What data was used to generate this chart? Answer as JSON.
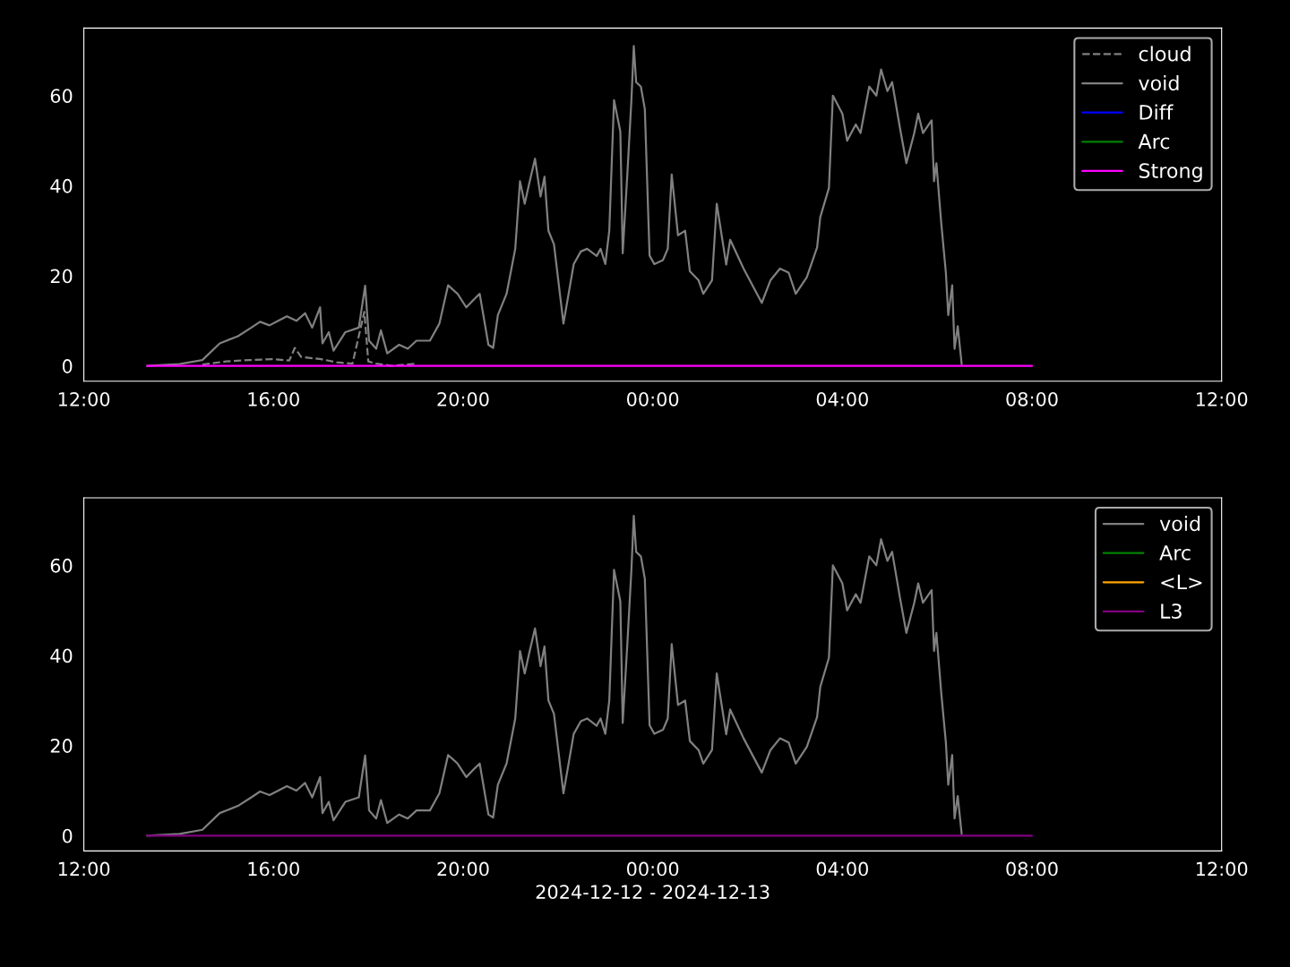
{
  "chart_data": [
    {
      "type": "line",
      "xlim": [
        "2024-12-12T12:00",
        "2024-12-13T12:00"
      ],
      "ylim": [
        -3.4,
        75
      ],
      "xticks": [
        {
          "value": "2024-12-12T12:00",
          "label": "12:00"
        },
        {
          "value": "2024-12-12T16:00",
          "label": "16:00"
        },
        {
          "value": "2024-12-12T20:00",
          "label": "20:00"
        },
        {
          "value": "2024-12-13T00:00",
          "label": "00:00"
        },
        {
          "value": "2024-12-13T04:00",
          "label": "04:00"
        },
        {
          "value": "2024-12-13T08:00",
          "label": "08:00"
        },
        {
          "value": "2024-12-13T12:00",
          "label": "12:00"
        }
      ],
      "yticks": [
        0,
        20,
        40,
        60
      ],
      "legend": "top right",
      "grid": false,
      "series": [
        {
          "name": "cloud",
          "color": "#808080",
          "line_style": "dashed",
          "x": [
            "2024-12-12T14:30",
            "2024-12-12T15:00",
            "2024-12-12T15:30",
            "2024-12-12T16:00",
            "2024-12-12T16:20",
            "2024-12-12T16:27",
            "2024-12-12T16:35",
            "2024-12-12T17:00",
            "2024-12-12T17:20",
            "2024-12-12T17:40",
            "2024-12-12T17:55",
            "2024-12-12T18:00",
            "2024-12-12T18:10",
            "2024-12-12T18:30",
            "2024-12-12T19:00"
          ],
          "values": [
            0.3,
            1,
            1.3,
            1.5,
            1.2,
            4,
            2,
            1.5,
            0.8,
            0.5,
            12,
            1,
            0.5,
            0,
            0.5
          ]
        },
        {
          "name": "void",
          "color": "#808080",
          "line_style": "solid",
          "x": [
            "2024-12-12T13:20",
            "2024-12-12T14:01",
            "2024-12-12T14:30",
            "2024-12-12T14:52",
            "2024-12-12T15:15",
            "2024-12-12T15:32",
            "2024-12-12T15:43",
            "2024-12-12T15:55",
            "2024-12-12T16:06",
            "2024-12-12T16:17",
            "2024-12-12T16:29",
            "2024-12-12T16:40",
            "2024-12-12T16:49",
            "2024-12-12T16:59",
            "2024-12-12T17:02",
            "2024-12-12T17:10",
            "2024-12-12T17:16",
            "2024-12-12T17:31",
            "2024-12-12T17:48",
            "2024-12-12T17:56",
            "2024-12-12T18:01",
            "2024-12-12T18:10",
            "2024-12-12T18:16",
            "2024-12-12T18:24",
            "2024-12-12T18:39",
            "2024-12-12T18:50",
            "2024-12-12T19:01",
            "2024-12-12T19:18",
            "2024-12-12T19:30",
            "2024-12-12T19:41",
            "2024-12-12T19:53",
            "2024-12-12T20:04",
            "2024-12-12T20:15",
            "2024-12-12T20:21",
            "2024-12-12T20:32",
            "2024-12-12T20:38",
            "2024-12-12T20:44",
            "2024-12-12T20:55",
            "2024-12-12T21:06",
            "2024-12-12T21:12",
            "2024-12-12T21:18",
            "2024-12-12T21:23",
            "2024-12-12T21:31",
            "2024-12-12T21:38",
            "2024-12-12T21:43",
            "2024-12-12T21:48",
            "2024-12-12T21:55",
            "2024-12-12T22:07",
            "2024-12-12T22:20",
            "2024-12-12T22:29",
            "2024-12-12T22:37",
            "2024-12-12T22:49",
            "2024-12-12T22:54",
            "2024-12-12T23:00",
            "2024-12-12T23:05",
            "2024-12-12T23:11",
            "2024-12-12T23:19",
            "2024-12-12T23:22",
            "2024-12-12T23:28",
            "2024-12-12T23:33",
            "2024-12-12T23:36",
            "2024-12-12T23:39",
            "2024-12-12T23:45",
            "2024-12-12T23:50",
            "2024-12-12T23:56",
            "2024-12-13T00:02",
            "2024-12-13T00:13",
            "2024-12-13T00:19",
            "2024-12-13T00:24",
            "2024-12-13T00:32",
            "2024-12-13T00:41",
            "2024-12-13T00:47",
            "2024-12-13T00:58",
            "2024-12-13T01:04",
            "2024-12-13T01:15",
            "2024-12-13T01:21",
            "2024-12-13T01:33",
            "2024-12-13T01:38",
            "2024-12-13T01:55",
            "2024-12-13T02:18",
            "2024-12-13T02:29",
            "2024-12-13T02:41",
            "2024-12-13T02:52",
            "2024-12-13T03:01",
            "2024-12-13T03:15",
            "2024-12-13T03:28",
            "2024-12-13T03:32",
            "2024-12-13T03:43",
            "2024-12-13T03:48",
            "2024-12-13T04:00",
            "2024-12-13T04:06",
            "2024-12-13T04:17",
            "2024-12-13T04:23",
            "2024-12-13T04:34",
            "2024-12-13T04:43",
            "2024-12-13T04:49",
            "2024-12-13T04:57",
            "2024-12-13T05:03",
            "2024-12-13T05:13",
            "2024-12-13T05:21",
            "2024-12-13T05:31",
            "2024-12-13T05:36",
            "2024-12-13T05:42",
            "2024-12-13T05:53",
            "2024-12-13T05:56",
            "2024-12-13T05:59",
            "2024-12-13T06:05",
            "2024-12-13T06:11",
            "2024-12-13T06:14",
            "2024-12-13T06:19",
            "2024-12-13T06:22",
            "2024-12-13T06:26",
            "2024-12-13T06:31"
          ],
          "values": [
            0,
            0.4,
            1.3,
            5,
            6.6,
            8.5,
            9.8,
            9,
            10,
            11,
            10,
            11.7,
            8.5,
            13,
            5,
            7.5,
            3.4,
            7.5,
            8.5,
            17.8,
            5.6,
            3.8,
            7.9,
            2.8,
            4.7,
            3.8,
            5.6,
            5.6,
            9.4,
            17.9,
            16,
            13,
            15,
            16,
            4.7,
            4,
            11.3,
            16,
            26,
            41,
            36,
            40,
            46,
            37.6,
            42,
            30,
            27,
            9.4,
            22.6,
            25.4,
            26,
            24.4,
            26,
            22.6,
            30,
            59,
            52,
            25,
            43,
            59,
            71,
            63,
            62,
            57,
            24.5,
            22.6,
            23.5,
            26,
            42.5,
            29,
            30,
            21,
            19,
            16,
            19,
            36,
            22.5,
            28,
            21.6,
            14,
            19,
            21.6,
            20.7,
            16,
            19.7,
            26.3,
            33,
            39.5,
            60,
            56,
            50,
            53.6,
            51.7,
            62,
            60,
            65.8,
            61,
            63,
            52.7,
            45,
            51.7,
            56,
            51.7,
            54.5,
            41,
            45,
            32,
            20.7,
            11.3,
            17.9,
            3.8,
            8.8,
            0.4
          ]
        },
        {
          "name": "Diff",
          "color": "#0000ff",
          "line_style": "solid"
        },
        {
          "name": "Arc",
          "color": "#008000",
          "line_style": "solid"
        },
        {
          "name": "Strong",
          "color": "#ff00ff",
          "line_style": "solid",
          "x": [
            "2024-12-12T13:20",
            "2024-12-13T08:00"
          ],
          "values": [
            0,
            0
          ]
        }
      ]
    },
    {
      "type": "line",
      "xlabel": "2024-12-12 - 2024-12-13",
      "xlim": [
        "2024-12-12T12:00",
        "2024-12-13T12:00"
      ],
      "ylim": [
        -3.4,
        75
      ],
      "xticks": [
        {
          "value": "2024-12-12T12:00",
          "label": "12:00"
        },
        {
          "value": "2024-12-12T16:00",
          "label": "16:00"
        },
        {
          "value": "2024-12-12T20:00",
          "label": "20:00"
        },
        {
          "value": "2024-12-13T00:00",
          "label": "00:00"
        },
        {
          "value": "2024-12-13T04:00",
          "label": "04:00"
        },
        {
          "value": "2024-12-13T08:00",
          "label": "08:00"
        },
        {
          "value": "2024-12-13T12:00",
          "label": "12:00"
        }
      ],
      "yticks": [
        0,
        20,
        40,
        60
      ],
      "legend": "top right",
      "grid": false,
      "series": [
        {
          "name": "void",
          "color": "#808080",
          "line_style": "solid",
          "x": [
            "2024-12-12T13:20",
            "2024-12-12T14:01",
            "2024-12-12T14:30",
            "2024-12-12T14:52",
            "2024-12-12T15:15",
            "2024-12-12T15:32",
            "2024-12-12T15:43",
            "2024-12-12T15:55",
            "2024-12-12T16:06",
            "2024-12-12T16:17",
            "2024-12-12T16:29",
            "2024-12-12T16:40",
            "2024-12-12T16:49",
            "2024-12-12T16:59",
            "2024-12-12T17:02",
            "2024-12-12T17:10",
            "2024-12-12T17:16",
            "2024-12-12T17:31",
            "2024-12-12T17:48",
            "2024-12-12T17:56",
            "2024-12-12T18:01",
            "2024-12-12T18:10",
            "2024-12-12T18:16",
            "2024-12-12T18:24",
            "2024-12-12T18:39",
            "2024-12-12T18:50",
            "2024-12-12T19:01",
            "2024-12-12T19:18",
            "2024-12-12T19:30",
            "2024-12-12T19:41",
            "2024-12-12T19:53",
            "2024-12-12T20:04",
            "2024-12-12T20:15",
            "2024-12-12T20:21",
            "2024-12-12T20:32",
            "2024-12-12T20:38",
            "2024-12-12T20:44",
            "2024-12-12T20:55",
            "2024-12-12T21:06",
            "2024-12-12T21:12",
            "2024-12-12T21:18",
            "2024-12-12T21:23",
            "2024-12-12T21:31",
            "2024-12-12T21:38",
            "2024-12-12T21:43",
            "2024-12-12T21:48",
            "2024-12-12T21:55",
            "2024-12-12T22:07",
            "2024-12-12T22:20",
            "2024-12-12T22:29",
            "2024-12-12T22:37",
            "2024-12-12T22:49",
            "2024-12-12T22:54",
            "2024-12-12T23:00",
            "2024-12-12T23:05",
            "2024-12-12T23:11",
            "2024-12-12T23:19",
            "2024-12-12T23:22",
            "2024-12-12T23:28",
            "2024-12-12T23:33",
            "2024-12-12T23:36",
            "2024-12-12T23:39",
            "2024-12-12T23:45",
            "2024-12-12T23:50",
            "2024-12-12T23:56",
            "2024-12-13T00:02",
            "2024-12-13T00:13",
            "2024-12-13T00:19",
            "2024-12-13T00:24",
            "2024-12-13T00:32",
            "2024-12-13T00:41",
            "2024-12-13T00:47",
            "2024-12-13T00:58",
            "2024-12-13T01:04",
            "2024-12-13T01:15",
            "2024-12-13T01:21",
            "2024-12-13T01:33",
            "2024-12-13T01:38",
            "2024-12-13T01:55",
            "2024-12-13T02:18",
            "2024-12-13T02:29",
            "2024-12-13T02:41",
            "2024-12-13T02:52",
            "2024-12-13T03:01",
            "2024-12-13T03:15",
            "2024-12-13T03:28",
            "2024-12-13T03:32",
            "2024-12-13T03:43",
            "2024-12-13T03:48",
            "2024-12-13T04:00",
            "2024-12-13T04:06",
            "2024-12-13T04:17",
            "2024-12-13T04:23",
            "2024-12-13T04:34",
            "2024-12-13T04:43",
            "2024-12-13T04:49",
            "2024-12-13T04:57",
            "2024-12-13T05:03",
            "2024-12-13T05:13",
            "2024-12-13T05:21",
            "2024-12-13T05:31",
            "2024-12-13T05:36",
            "2024-12-13T05:42",
            "2024-12-13T05:53",
            "2024-12-13T05:56",
            "2024-12-13T05:59",
            "2024-12-13T06:05",
            "2024-12-13T06:11",
            "2024-12-13T06:14",
            "2024-12-13T06:19",
            "2024-12-13T06:22",
            "2024-12-13T06:26",
            "2024-12-13T06:31"
          ],
          "values": [
            0,
            0.4,
            1.3,
            5,
            6.6,
            8.5,
            9.8,
            9,
            10,
            11,
            10,
            11.7,
            8.5,
            13,
            5,
            7.5,
            3.4,
            7.5,
            8.5,
            17.8,
            5.6,
            3.8,
            7.9,
            2.8,
            4.7,
            3.8,
            5.6,
            5.6,
            9.4,
            17.9,
            16,
            13,
            15,
            16,
            4.7,
            4,
            11.3,
            16,
            26,
            41,
            36,
            40,
            46,
            37.6,
            42,
            30,
            27,
            9.4,
            22.6,
            25.4,
            26,
            24.4,
            26,
            22.6,
            30,
            59,
            52,
            25,
            43,
            59,
            71,
            63,
            62,
            57,
            24.5,
            22.6,
            23.5,
            26,
            42.5,
            29,
            30,
            21,
            19,
            16,
            19,
            36,
            22.5,
            28,
            21.6,
            14,
            19,
            21.6,
            20.7,
            16,
            19.7,
            26.3,
            33,
            39.5,
            60,
            56,
            50,
            53.6,
            51.7,
            62,
            60,
            65.8,
            61,
            63,
            52.7,
            45,
            51.7,
            56,
            51.7,
            54.5,
            41,
            45,
            32,
            20.7,
            11.3,
            17.9,
            3.8,
            8.8,
            0.4
          ]
        },
        {
          "name": "Arc",
          "color": "#008000",
          "line_style": "solid"
        },
        {
          "name": "<L>",
          "color": "#ffa500",
          "line_style": "solid"
        },
        {
          "name": "L3",
          "color": "#800080",
          "line_style": "solid",
          "x": [
            "2024-12-12T13:20",
            "2024-12-13T08:00"
          ],
          "values": [
            0,
            0
          ]
        }
      ]
    }
  ]
}
